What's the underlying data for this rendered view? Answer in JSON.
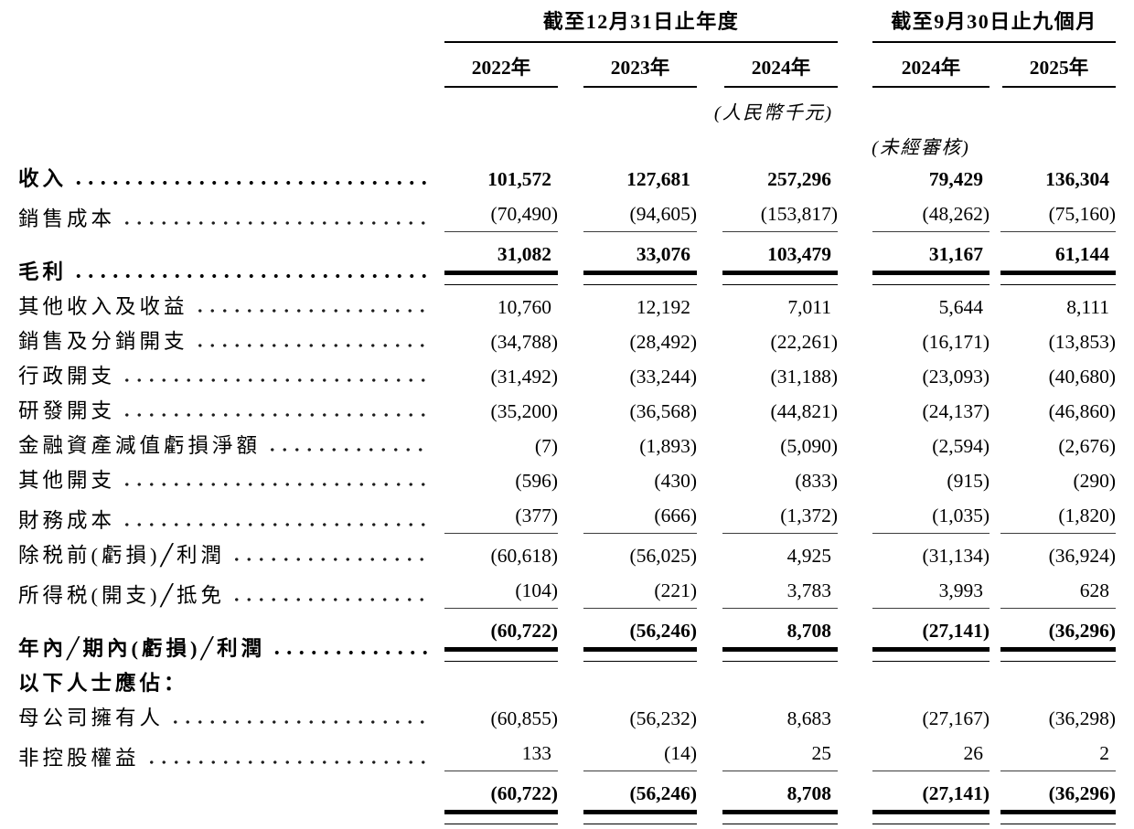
{
  "colors": {
    "background": "#ffffff",
    "text": "#000000",
    "rule": "#000000"
  },
  "table": {
    "group_headers": [
      {
        "label": "截至12月31日止年度"
      },
      {
        "label": "截至9月30日止九個月"
      }
    ],
    "year_headers": [
      "2022年",
      "2023年",
      "2024年",
      "2024年",
      "2025年"
    ],
    "currency_note": "(人民幣千元)",
    "unaudited_note": "(未經審核)",
    "column_keys": [
      "fy2022",
      "fy2023",
      "fy2024",
      "9m2024",
      "9m2025"
    ],
    "rows": [
      {
        "label": "收入",
        "bold": true,
        "leader": true,
        "rule": null,
        "values": [
          "101,572",
          "127,681",
          "257,296",
          "79,429",
          "136,304"
        ]
      },
      {
        "label": "銷售成本",
        "bold": false,
        "leader": true,
        "rule": "single",
        "values": [
          "(70,490)",
          "(94,605)",
          "(153,817)",
          "(48,262)",
          "(75,160)"
        ]
      },
      {
        "label": "毛利",
        "bold": true,
        "leader": true,
        "rule": "double",
        "values": [
          "31,082",
          "33,076",
          "103,479",
          "31,167",
          "61,144"
        ]
      },
      {
        "label": "其他收入及收益",
        "bold": false,
        "leader": true,
        "rule": null,
        "values": [
          "10,760",
          "12,192",
          "7,011",
          "5,644",
          "8,111"
        ]
      },
      {
        "label": "銷售及分銷開支",
        "bold": false,
        "leader": true,
        "rule": null,
        "values": [
          "(34,788)",
          "(28,492)",
          "(22,261)",
          "(16,171)",
          "(13,853)"
        ]
      },
      {
        "label": "行政開支",
        "bold": false,
        "leader": true,
        "rule": null,
        "values": [
          "(31,492)",
          "(33,244)",
          "(31,188)",
          "(23,093)",
          "(40,680)"
        ]
      },
      {
        "label": "研發開支",
        "bold": false,
        "leader": true,
        "rule": null,
        "values": [
          "(35,200)",
          "(36,568)",
          "(44,821)",
          "(24,137)",
          "(46,860)"
        ]
      },
      {
        "label": "金融資產減值虧損淨額",
        "bold": false,
        "leader": true,
        "rule": null,
        "values": [
          "(7)",
          "(1,893)",
          "(5,090)",
          "(2,594)",
          "(2,676)"
        ]
      },
      {
        "label": "其他開支",
        "bold": false,
        "leader": true,
        "rule": null,
        "values": [
          "(596)",
          "(430)",
          "(833)",
          "(915)",
          "(290)"
        ]
      },
      {
        "label": "財務成本",
        "bold": false,
        "leader": true,
        "rule": "single",
        "values": [
          "(377)",
          "(666)",
          "(1,372)",
          "(1,035)",
          "(1,820)"
        ]
      },
      {
        "label": "除税前(虧損)╱利潤",
        "bold": false,
        "leader": true,
        "rule": null,
        "values": [
          "(60,618)",
          "(56,025)",
          "4,925",
          "(31,134)",
          "(36,924)"
        ]
      },
      {
        "label": "所得税(開支)╱抵免",
        "bold": false,
        "leader": true,
        "rule": "single",
        "values": [
          "(104)",
          "(221)",
          "3,783",
          "3,993",
          "628"
        ]
      },
      {
        "label": "年內╱期內(虧損)╱利潤",
        "bold": true,
        "leader": true,
        "rule": "double",
        "values": [
          "(60,722)",
          "(56,246)",
          "8,708",
          "(27,141)",
          "(36,296)"
        ]
      },
      {
        "label": "以下人士應佔：",
        "bold": true,
        "leader": false,
        "rule": null,
        "section_header": true,
        "values": [
          "",
          "",
          "",
          "",
          ""
        ]
      },
      {
        "label": "母公司擁有人",
        "bold": false,
        "leader": true,
        "rule": null,
        "values": [
          "(60,855)",
          "(56,232)",
          "8,683",
          "(27,167)",
          "(36,298)"
        ]
      },
      {
        "label": "非控股權益",
        "bold": false,
        "leader": true,
        "rule": "single",
        "values": [
          "133",
          "(14)",
          "25",
          "26",
          "2"
        ]
      },
      {
        "label": "",
        "bold": true,
        "leader": false,
        "rule": "double",
        "values": [
          "(60,722)",
          "(56,246)",
          "8,708",
          "(27,141)",
          "(36,296)"
        ]
      }
    ]
  }
}
